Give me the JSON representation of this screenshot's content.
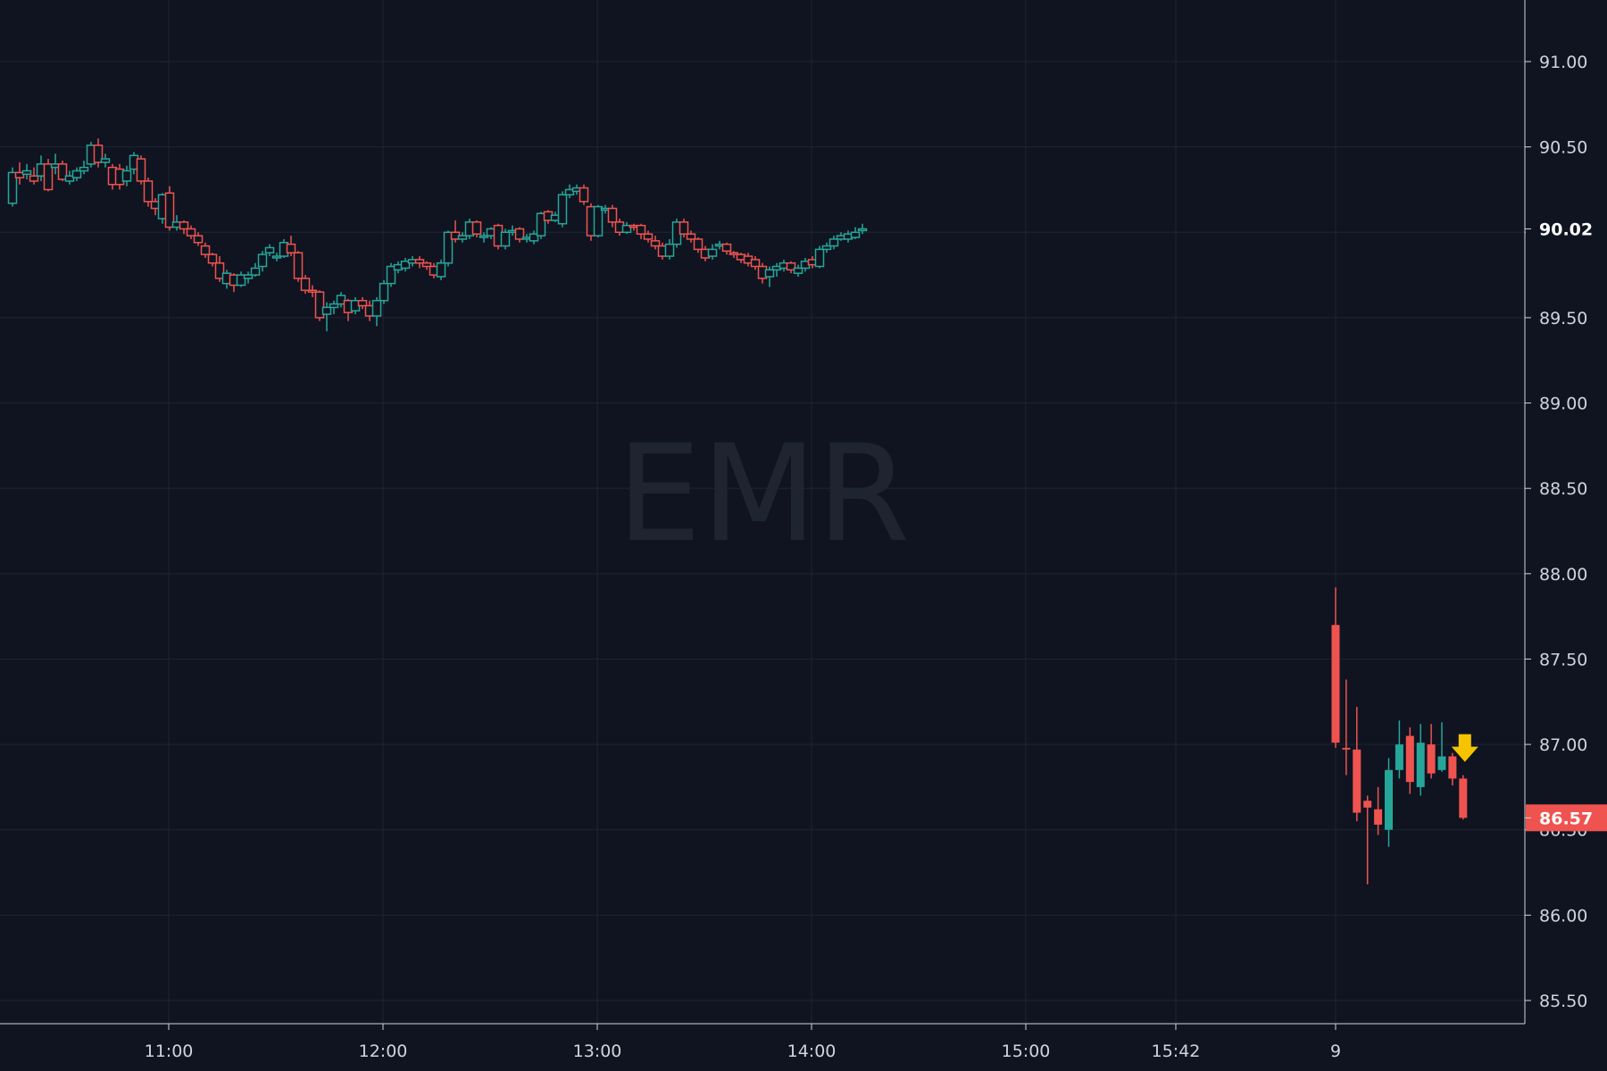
{
  "chart_data": {
    "type": "candlestick",
    "symbol": "EMR",
    "watermark": "EMR",
    "ylim": [
      85.4,
      91.2
    ],
    "y_ticks": [
      "85.50",
      "86.00",
      "86.50",
      "87.00",
      "87.50",
      "88.00",
      "88.50",
      "89.00",
      "89.50",
      "90.00",
      "90.50",
      "91.00"
    ],
    "x_ticks": [
      "11:00",
      "12:00",
      "13:00",
      "14:00",
      "15:00",
      "15:42",
      "9"
    ],
    "grid": true,
    "colors": {
      "up": "#26a69a",
      "down": "#ef5350",
      "background": "#0f1420",
      "grid": "#1e2431",
      "arrow": "#f5c400"
    },
    "price_labels": [
      {
        "value": 90.02,
        "text": "90.02",
        "style": "dark"
      },
      {
        "value": 86.57,
        "text": "86.57",
        "style": "red"
      }
    ],
    "marker": {
      "type": "arrow-down",
      "color": "#f5c400",
      "price": 86.95
    },
    "session1": {
      "start_time": "10:15",
      "interval_minutes": 2,
      "candles": [
        [
          90.17,
          90.35,
          90.38,
          90.15
        ],
        [
          90.35,
          90.32,
          90.41,
          90.28
        ],
        [
          90.34,
          90.36,
          90.4,
          90.31
        ],
        [
          90.33,
          90.3,
          90.38,
          90.28
        ],
        [
          90.33,
          90.4,
          90.45,
          90.3
        ],
        [
          90.4,
          90.25,
          90.43,
          90.24
        ],
        [
          90.38,
          90.4,
          90.46,
          90.34
        ],
        [
          90.4,
          90.31,
          90.42,
          90.3
        ],
        [
          90.3,
          90.33,
          90.36,
          90.28
        ],
        [
          90.32,
          90.36,
          90.38,
          90.3
        ],
        [
          90.36,
          90.38,
          90.42,
          90.34
        ],
        [
          90.4,
          90.51,
          90.53,
          90.38
        ],
        [
          90.51,
          90.41,
          90.55,
          90.38
        ],
        [
          90.41,
          90.43,
          90.46,
          90.38
        ],
        [
          90.38,
          90.28,
          90.4,
          90.25
        ],
        [
          90.37,
          90.28,
          90.4,
          90.25
        ],
        [
          90.3,
          90.36,
          90.39,
          90.27
        ],
        [
          90.37,
          90.45,
          90.47,
          90.34
        ],
        [
          90.43,
          90.3,
          90.45,
          90.28
        ],
        [
          90.3,
          90.18,
          90.32,
          90.15
        ],
        [
          90.18,
          90.14,
          90.2,
          90.1
        ],
        [
          90.08,
          90.22,
          90.23,
          90.05
        ],
        [
          90.23,
          90.03,
          90.27,
          90.01
        ],
        [
          90.03,
          90.06,
          90.1,
          90.01
        ],
        [
          90.06,
          90.02,
          90.07,
          89.99
        ],
        [
          90.02,
          89.98,
          90.04,
          89.96
        ],
        [
          89.98,
          89.94,
          90.0,
          89.92
        ],
        [
          89.92,
          89.87,
          89.94,
          89.85
        ],
        [
          89.87,
          89.82,
          89.88,
          89.8
        ],
        [
          89.82,
          89.73,
          89.86,
          89.71
        ],
        [
          89.7,
          89.76,
          89.78,
          89.67
        ],
        [
          89.75,
          89.69,
          89.76,
          89.65
        ],
        [
          89.69,
          89.75,
          89.77,
          89.68
        ],
        [
          89.73,
          89.75,
          89.77,
          89.7
        ],
        [
          89.75,
          89.79,
          89.82,
          89.74
        ],
        [
          89.8,
          89.87,
          89.89,
          89.77
        ],
        [
          89.88,
          89.91,
          89.93,
          89.86
        ],
        [
          89.85,
          89.86,
          89.88,
          89.83
        ],
        [
          89.86,
          89.94,
          89.96,
          89.85
        ],
        [
          89.93,
          89.88,
          89.98,
          89.86
        ],
        [
          89.88,
          89.73,
          89.89,
          89.71
        ],
        [
          89.73,
          89.66,
          89.75,
          89.64
        ],
        [
          89.66,
          89.65,
          89.69,
          89.62
        ],
        [
          89.65,
          89.5,
          89.66,
          89.48
        ],
        [
          89.52,
          89.56,
          89.59,
          89.42
        ],
        [
          89.56,
          89.58,
          89.6,
          89.52
        ],
        [
          89.58,
          89.63,
          89.65,
          89.56
        ],
        [
          89.6,
          89.53,
          89.61,
          89.48
        ],
        [
          89.54,
          89.6,
          89.62,
          89.52
        ],
        [
          89.6,
          89.57,
          89.62,
          89.55
        ],
        [
          89.57,
          89.51,
          89.6,
          89.48
        ],
        [
          89.51,
          89.6,
          89.62,
          89.45
        ],
        [
          89.6,
          89.7,
          89.72,
          89.58
        ],
        [
          89.7,
          89.8,
          89.82,
          89.68
        ],
        [
          89.78,
          89.81,
          89.83,
          89.76
        ],
        [
          89.79,
          89.83,
          89.85,
          89.77
        ],
        [
          89.82,
          89.84,
          89.86,
          89.8
        ],
        [
          89.84,
          89.82,
          89.86,
          89.79
        ],
        [
          89.82,
          89.8,
          89.83,
          89.78
        ],
        [
          89.8,
          89.75,
          89.82,
          89.73
        ],
        [
          89.74,
          89.82,
          89.84,
          89.72
        ],
        [
          89.82,
          90.0,
          90.01,
          89.8
        ],
        [
          90.0,
          89.96,
          90.07,
          89.94
        ],
        [
          89.96,
          89.98,
          90.0,
          89.94
        ],
        [
          89.98,
          90.06,
          90.08,
          89.96
        ],
        [
          90.06,
          89.99,
          90.07,
          89.97
        ],
        [
          89.97,
          89.98,
          90.0,
          89.94
        ],
        [
          89.98,
          90.02,
          90.03,
          89.96
        ],
        [
          90.04,
          89.92,
          90.05,
          89.9
        ],
        [
          89.92,
          90.0,
          90.02,
          89.9
        ],
        [
          90.0,
          90.01,
          90.04,
          89.98
        ],
        [
          90.02,
          89.96,
          90.03,
          89.94
        ],
        [
          89.96,
          89.97,
          89.99,
          89.94
        ],
        [
          89.95,
          89.99,
          90.01,
          89.93
        ],
        [
          89.98,
          90.11,
          90.12,
          89.96
        ],
        [
          90.12,
          90.07,
          90.13,
          90.05
        ],
        [
          90.07,
          90.1,
          90.12,
          90.06
        ],
        [
          90.05,
          90.22,
          90.24,
          90.03
        ],
        [
          90.22,
          90.25,
          90.28,
          90.2
        ],
        [
          90.24,
          90.26,
          90.28,
          90.22
        ],
        [
          90.26,
          90.18,
          90.28,
          90.16
        ],
        [
          90.15,
          89.98,
          90.17,
          89.95
        ],
        [
          89.98,
          90.15,
          90.16,
          89.97
        ],
        [
          90.13,
          90.14,
          90.16,
          90.11
        ],
        [
          90.14,
          90.06,
          90.16,
          90.03
        ],
        [
          90.06,
          90.0,
          90.08,
          89.98
        ],
        [
          90.0,
          90.04,
          90.06,
          89.99
        ],
        [
          90.04,
          90.03,
          90.05,
          90.01
        ],
        [
          90.04,
          89.99,
          90.05,
          89.96
        ],
        [
          89.99,
          89.96,
          90.01,
          89.94
        ],
        [
          89.95,
          89.92,
          89.98,
          89.9
        ],
        [
          89.92,
          89.86,
          89.94,
          89.84
        ],
        [
          89.86,
          89.93,
          89.96,
          89.84
        ],
        [
          89.93,
          90.06,
          90.08,
          89.91
        ],
        [
          90.06,
          89.99,
          90.08,
          89.97
        ],
        [
          89.99,
          89.96,
          90.01,
          89.94
        ],
        [
          89.96,
          89.9,
          89.97,
          89.88
        ],
        [
          89.9,
          89.85,
          89.92,
          89.83
        ],
        [
          89.86,
          89.9,
          89.93,
          89.84
        ],
        [
          89.92,
          89.93,
          89.95,
          89.9
        ],
        [
          89.93,
          89.89,
          89.94,
          89.87
        ],
        [
          89.88,
          89.87,
          89.89,
          89.85
        ],
        [
          89.87,
          89.84,
          89.88,
          89.82
        ],
        [
          89.86,
          89.82,
          89.88,
          89.8
        ],
        [
          89.84,
          89.8,
          89.86,
          89.78
        ],
        [
          89.8,
          89.73,
          89.82,
          89.7
        ],
        [
          89.74,
          89.78,
          89.8,
          89.68
        ],
        [
          89.78,
          89.8,
          89.82,
          89.74
        ],
        [
          89.79,
          89.82,
          89.84,
          89.77
        ],
        [
          89.82,
          89.78,
          89.83,
          89.76
        ],
        [
          89.76,
          89.79,
          89.81,
          89.74
        ],
        [
          89.79,
          89.83,
          89.85,
          89.77
        ],
        [
          89.84,
          89.81,
          89.86,
          89.79
        ],
        [
          89.8,
          89.9,
          89.92,
          89.79
        ],
        [
          89.9,
          89.92,
          89.94,
          89.88
        ],
        [
          89.92,
          89.96,
          89.98,
          89.9
        ],
        [
          89.96,
          89.98,
          90.0,
          89.95
        ],
        [
          89.96,
          89.99,
          90.01,
          89.94
        ],
        [
          89.97,
          90.0,
          90.03,
          89.96
        ],
        [
          90.01,
          90.02,
          90.05,
          89.99
        ]
      ]
    },
    "session2": {
      "label": "9",
      "candles": [
        [
          87.7,
          87.01,
          87.92,
          86.98
        ],
        [
          86.98,
          86.97,
          87.38,
          86.82
        ],
        [
          86.97,
          86.6,
          87.22,
          86.55
        ],
        [
          86.67,
          86.63,
          86.7,
          86.18
        ],
        [
          86.62,
          86.53,
          86.75,
          86.47
        ],
        [
          86.5,
          86.85,
          86.92,
          86.4
        ],
        [
          86.85,
          87.0,
          87.14,
          86.8
        ],
        [
          87.05,
          86.78,
          87.1,
          86.71
        ],
        [
          86.75,
          87.01,
          87.12,
          86.7
        ],
        [
          87.0,
          86.83,
          87.12,
          86.8
        ],
        [
          86.85,
          86.93,
          87.13,
          86.84
        ],
        [
          86.93,
          86.8,
          86.95,
          86.76
        ],
        [
          86.8,
          86.57,
          86.82,
          86.56
        ]
      ]
    }
  }
}
